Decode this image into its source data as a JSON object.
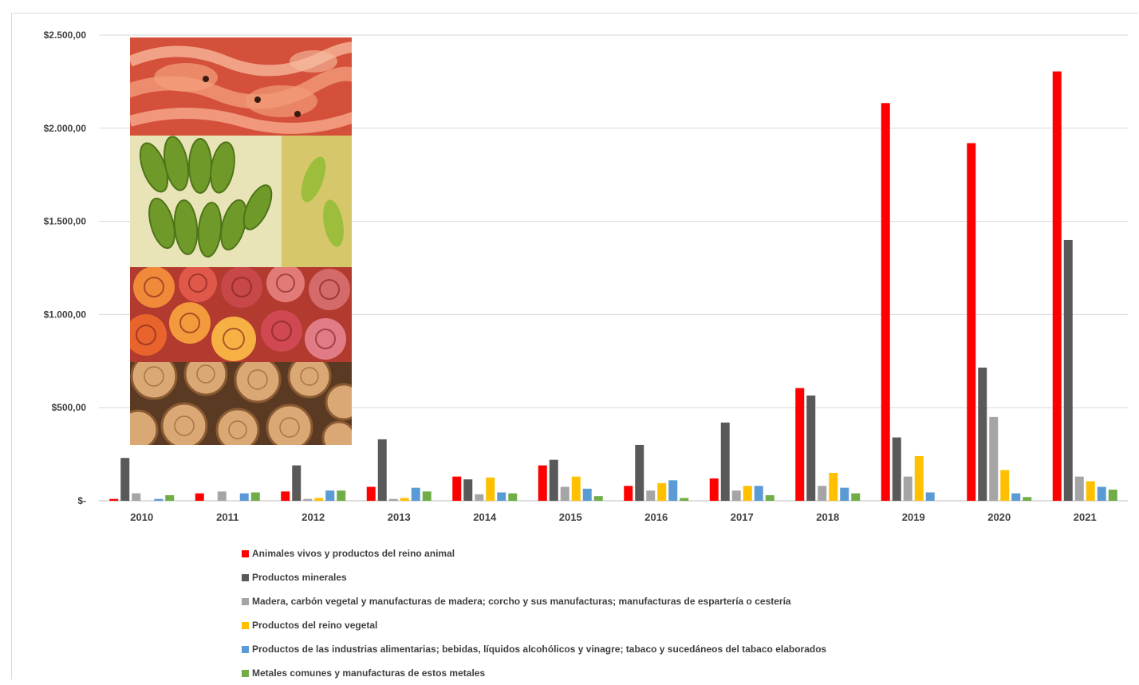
{
  "chart_data": {
    "type": "bar",
    "categories": [
      "2010",
      "2011",
      "2012",
      "2013",
      "2014",
      "2015",
      "2016",
      "2017",
      "2018",
      "2019",
      "2020",
      "2021"
    ],
    "ylim": [
      0,
      2500
    ],
    "yticks": [
      0,
      500,
      1000,
      1500,
      2000,
      2500
    ],
    "ytick_labels": [
      "$-",
      "$500,00",
      "$1.000,00",
      "$1.500,00",
      "$2.000,00",
      "$2.500,00"
    ],
    "grid": true,
    "legend_position": "bottom",
    "series": [
      {
        "name": "Animales vivos y productos del reino animal",
        "color": "#ff0000",
        "values": [
          10,
          40,
          50,
          75,
          130,
          190,
          80,
          120,
          605,
          2135,
          1920,
          2305
        ]
      },
      {
        "name": "Productos minerales",
        "color": "#595959",
        "values": [
          230,
          0,
          190,
          330,
          115,
          220,
          300,
          420,
          565,
          340,
          715,
          1400
        ]
      },
      {
        "name": "Madera, carbón vegetal y manufacturas de madera; corcho y sus manufacturas; manufacturas de espartería o cestería",
        "color": "#a5a5a5",
        "values": [
          40,
          50,
          10,
          10,
          35,
          75,
          55,
          55,
          80,
          130,
          450,
          130
        ]
      },
      {
        "name": "Productos del reino vegetal",
        "color": "#ffc000",
        "values": [
          0,
          0,
          15,
          15,
          125,
          130,
          95,
          80,
          150,
          240,
          165,
          105
        ]
      },
      {
        "name": "Productos de las industrias alimentarias; bebidas, líquidos alcohólicos y vinagre; tabaco y sucedáneos del tabaco elaborados",
        "color": "#5b9bd5",
        "values": [
          10,
          40,
          55,
          70,
          45,
          65,
          110,
          80,
          70,
          45,
          40,
          75
        ]
      },
      {
        "name": "Metales comunes y manufacturas de estos metales",
        "color": "#70ad47",
        "values": [
          30,
          45,
          55,
          50,
          40,
          25,
          15,
          30,
          40,
          0,
          20,
          60
        ]
      }
    ]
  },
  "images": [
    {
      "name": "shrimp-photo"
    },
    {
      "name": "banana-photo"
    },
    {
      "name": "roses-photo"
    },
    {
      "name": "wood-logs-photo"
    }
  ]
}
